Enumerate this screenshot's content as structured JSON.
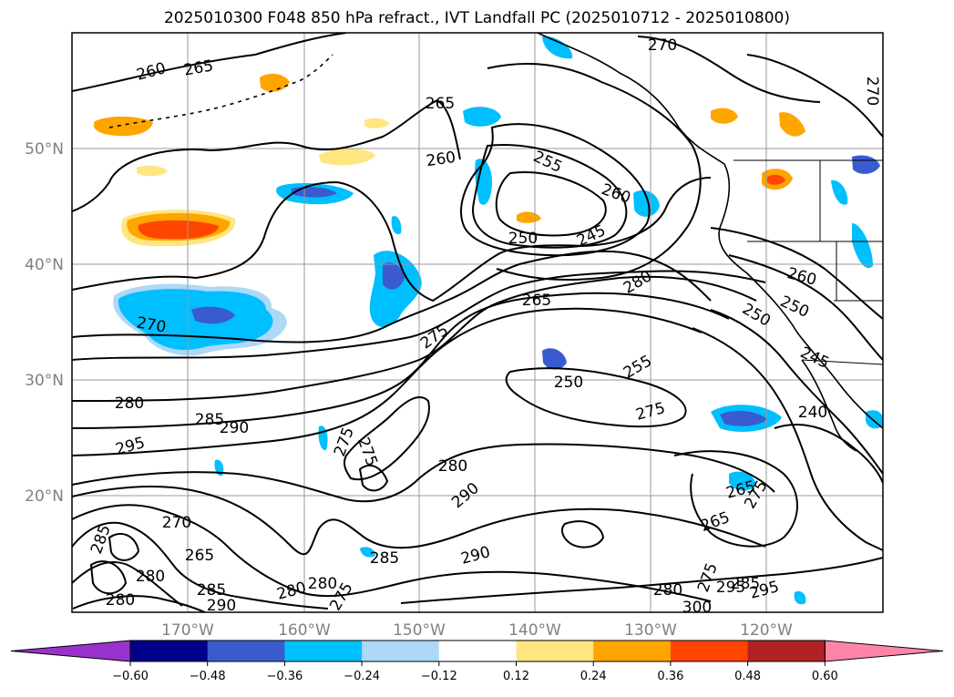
{
  "title": "2025010300 F048 850 hPa refract., IVT Landfall PC (2025010712 - 2025010800)",
  "map": {
    "lon_labels": [
      "170°W",
      "160°W",
      "150°W",
      "140°W",
      "130°W",
      "120°W"
    ],
    "lat_labels": [
      "50°N",
      "40°N",
      "30°N",
      "20°N"
    ],
    "contour_labels": [
      "260",
      "265",
      "270",
      "260",
      "265",
      "255",
      "260",
      "250",
      "245",
      "280",
      "265",
      "270",
      "275",
      "250",
      "255",
      "250",
      "275",
      "280",
      "285",
      "290",
      "295",
      "275",
      "275",
      "285",
      "270",
      "280",
      "280",
      "290",
      "265",
      "265",
      "285",
      "280",
      "280",
      "275",
      "285",
      "290",
      "295",
      "290",
      "280",
      "285",
      "280",
      "275",
      "300",
      "295",
      "240",
      "245",
      "250",
      "260",
      "265",
      "270",
      "275"
    ]
  },
  "colorbar": {
    "tick_labels": [
      "−0.60",
      "−0.48",
      "−0.36",
      "−0.24",
      "−0.12",
      "0.12",
      "0.24",
      "0.36",
      "0.48",
      "0.60"
    ],
    "colors": [
      "#9932cc",
      "#00008b",
      "#3a5bd0",
      "#00bfff",
      "#add8f7",
      "#ffffff",
      "#ffe680",
      "#ffa500",
      "#ff4500",
      "#b22222",
      "#ff85a8"
    ]
  }
}
